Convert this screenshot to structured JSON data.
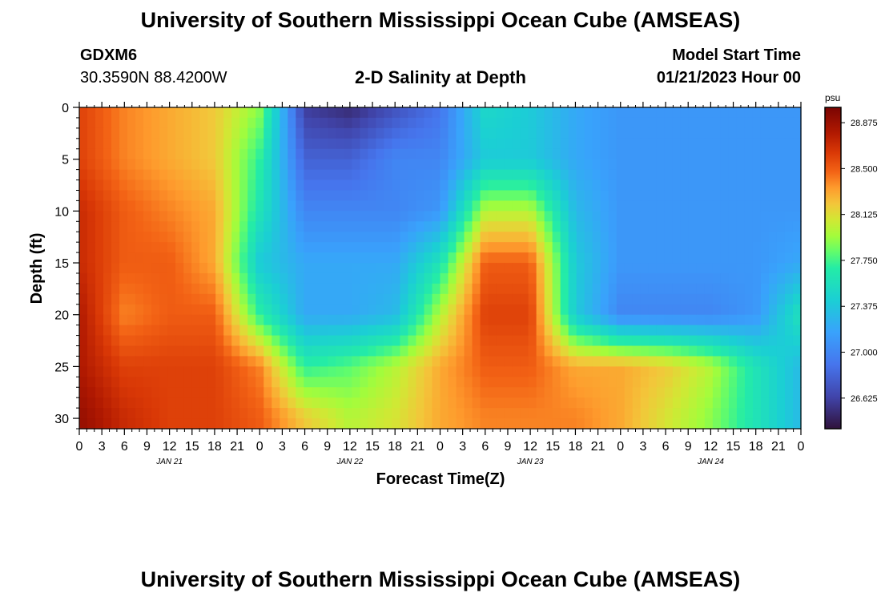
{
  "header": {
    "title": "University of Southern Mississippi Ocean Cube (AMSEAS)",
    "station": "GDXM6",
    "coords": "30.3590N  88.4200W",
    "subtitle": "2-D Salinity at Depth",
    "model_start_label": "Model Start Time",
    "model_start_value": "01/21/2023 Hour 00"
  },
  "footer": {
    "title": "University of Southern Mississippi Ocean Cube (AMSEAS)"
  },
  "chart_data": {
    "type": "heatmap",
    "title": "2-D Salinity at Depth",
    "xlabel": "Forecast Time(Z)",
    "ylabel": "Depth (ft)",
    "x_tick_labels": [
      "0",
      "3",
      "6",
      "9",
      "12",
      "15",
      "18",
      "21",
      "0",
      "3",
      "6",
      "9",
      "12",
      "15",
      "18",
      "21",
      "0",
      "3",
      "6",
      "9",
      "12",
      "15",
      "18",
      "21",
      "0",
      "3",
      "6",
      "9",
      "12",
      "15",
      "18",
      "21",
      "0"
    ],
    "day_labels": [
      "JAN 21",
      "JAN 22",
      "JAN 23",
      "JAN 24"
    ],
    "xlim_hours": [
      0,
      96
    ],
    "ylim_ft": [
      0,
      31
    ],
    "y_ticks": [
      0,
      5,
      10,
      15,
      20,
      25,
      30
    ],
    "colorbar": {
      "unit": "psu",
      "min": 26.375,
      "max": 29.0,
      "ticks": [
        "28.875",
        "28.500",
        "28.125",
        "27.750",
        "27.375",
        "27.000",
        "26.625"
      ],
      "tick_values": [
        28.875,
        28.5,
        28.125,
        27.75,
        27.375,
        27.0,
        26.625
      ]
    },
    "depth_levels_ft": [
      0,
      5,
      10,
      15,
      20,
      25,
      30
    ],
    "hour_levels": [
      0,
      6,
      12,
      18,
      24,
      30,
      36,
      42,
      48,
      54,
      60,
      66,
      72,
      78,
      84,
      90,
      96
    ],
    "salinity_grid": [
      [
        28.6,
        28.4,
        28.3,
        28.2,
        27.9,
        26.6,
        26.5,
        26.7,
        26.9,
        27.5,
        27.4,
        27.2,
        27.1,
        27.1,
        27.1,
        27.1,
        27.1
      ],
      [
        28.6,
        28.4,
        28.3,
        28.2,
        27.7,
        26.8,
        26.8,
        27.0,
        27.0,
        27.4,
        27.4,
        27.2,
        27.1,
        27.1,
        27.1,
        27.1,
        27.1
      ],
      [
        28.7,
        28.5,
        28.4,
        28.3,
        27.6,
        27.0,
        27.0,
        27.0,
        27.1,
        28.0,
        28.0,
        27.3,
        27.1,
        27.1,
        27.1,
        27.1,
        27.1
      ],
      [
        28.7,
        28.5,
        28.5,
        28.3,
        27.4,
        27.2,
        27.2,
        27.2,
        27.6,
        28.5,
        28.5,
        27.4,
        27.1,
        27.1,
        27.1,
        27.1,
        27.2
      ],
      [
        28.8,
        28.4,
        28.5,
        28.5,
        27.7,
        27.2,
        27.2,
        27.3,
        28.0,
        28.6,
        28.6,
        27.4,
        27.0,
        27.0,
        27.0,
        27.1,
        27.6
      ],
      [
        28.8,
        28.6,
        28.6,
        28.6,
        28.4,
        27.7,
        27.8,
        28.0,
        28.3,
        28.5,
        28.5,
        28.3,
        28.3,
        28.2,
        28.0,
        27.6,
        27.3
      ],
      [
        28.9,
        28.7,
        28.6,
        28.6,
        28.5,
        28.2,
        28.0,
        28.1,
        28.3,
        28.4,
        28.4,
        28.4,
        28.3,
        28.1,
        27.9,
        27.6,
        27.3
      ]
    ]
  }
}
